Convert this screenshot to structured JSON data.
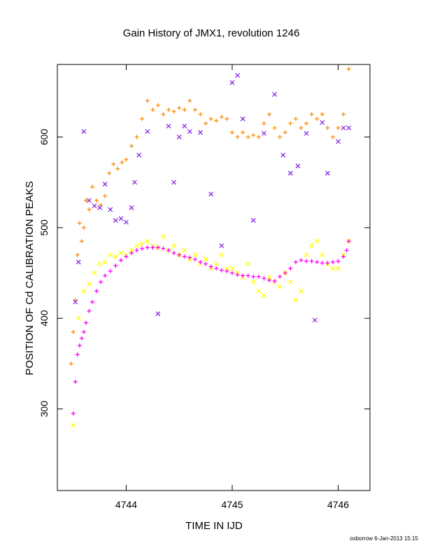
{
  "chart_data": {
    "type": "scatter",
    "title": "Gain History of JMX1, revolution 1246",
    "xlabel": "TIME IN IJD",
    "ylabel": "POSITION OF Cd CALIBRATION PEAKS",
    "xlim": [
      4743.35,
      4746.3
    ],
    "ylim": [
      210,
      680
    ],
    "x_ticks": [
      "4744",
      "4745",
      "4746"
    ],
    "y_ticks": [
      "300",
      "400",
      "500",
      "600"
    ],
    "x_tick_values": [
      4744,
      4745,
      4746
    ],
    "y_tick_values": [
      300,
      400,
      500,
      600
    ],
    "grid": false,
    "legend": "none",
    "series": [
      {
        "color": "#ff8c00",
        "marker": "plus",
        "x": [
          4743.48,
          4743.5,
          4743.52,
          4743.54,
          4743.56,
          4743.58,
          4743.6,
          4743.62,
          4743.65,
          4743.68,
          4743.72,
          4743.76,
          4743.8,
          4743.84,
          4743.88,
          4743.92,
          4743.96,
          4744.0,
          4744.05,
          4744.1,
          4744.15,
          4744.2,
          4744.25,
          4744.3,
          4744.35,
          4744.4,
          4744.45,
          4744.5,
          4744.55,
          4744.6,
          4744.65,
          4744.7,
          4744.75,
          4744.8,
          4744.85,
          4744.9,
          4744.95,
          4745.0,
          4745.05,
          4745.1,
          4745.15,
          4745.2,
          4745.25,
          4745.3,
          4745.35,
          4745.4,
          4745.45,
          4745.5,
          4745.55,
          4745.6,
          4745.65,
          4745.7,
          4745.75,
          4745.8,
          4745.85,
          4745.9,
          4745.95,
          4746.0,
          4746.05,
          4746.1
        ],
        "y": [
          350,
          385,
          420,
          470,
          505,
          485,
          500,
          530,
          520,
          545,
          530,
          525,
          535,
          560,
          570,
          565,
          572,
          575,
          590,
          600,
          620,
          640,
          630,
          635,
          625,
          630,
          628,
          632,
          630,
          640,
          630,
          625,
          615,
          620,
          618,
          622,
          620,
          605,
          600,
          605,
          600,
          602,
          600,
          615,
          625,
          610,
          600,
          605,
          615,
          620,
          610,
          615,
          625,
          620,
          625,
          610,
          600,
          610,
          625,
          675
        ]
      },
      {
        "color": "#8a2be2",
        "marker": "cross",
        "x": [
          4743.52,
          4743.55,
          4743.6,
          4743.65,
          4743.7,
          4743.75,
          4743.8,
          4743.85,
          4743.9,
          4743.95,
          4744.0,
          4744.05,
          4744.08,
          4744.12,
          4744.2,
          4744.3,
          4744.4,
          4744.45,
          4744.5,
          4744.55,
          4744.6,
          4744.7,
          4744.8,
          4744.9,
          4745.0,
          4745.05,
          4745.1,
          4745.2,
          4745.3,
          4745.4,
          4745.48,
          4745.55,
          4745.62,
          4745.7,
          4745.78,
          4745.85,
          4745.9,
          4746.0,
          4746.05,
          4746.1
        ],
        "y": [
          418,
          462,
          606,
          530,
          524,
          522,
          548,
          520,
          508,
          510,
          506,
          522,
          550,
          580,
          606,
          405,
          612,
          550,
          600,
          612,
          606,
          605,
          537,
          480,
          660,
          668,
          620,
          508,
          604,
          647,
          580,
          560,
          568,
          604,
          398,
          616,
          560,
          595,
          610,
          610
        ]
      },
      {
        "color": "#ffff00",
        "marker": "cross",
        "x": [
          4743.5,
          4743.55,
          4743.6,
          4743.65,
          4743.7,
          4743.75,
          4743.8,
          4743.85,
          4743.9,
          4743.95,
          4744.0,
          4744.05,
          4744.1,
          4744.15,
          4744.2,
          4744.25,
          4744.3,
          4744.35,
          4744.4,
          4744.45,
          4744.5,
          4744.55,
          4744.6,
          4744.65,
          4744.7,
          4744.75,
          4744.8,
          4744.85,
          4744.9,
          4744.95,
          4745.0,
          4745.05,
          4745.1,
          4745.15,
          4745.2,
          4745.25,
          4745.3,
          4745.35,
          4745.4,
          4745.45,
          4745.5,
          4745.55,
          4745.6,
          4745.65,
          4745.7,
          4745.75,
          4745.8,
          4745.85,
          4745.9,
          4745.95,
          4746.0,
          4746.05,
          4746.1
        ],
        "y": [
          282,
          400,
          430,
          438,
          450,
          460,
          462,
          470,
          468,
          472,
          470,
          475,
          480,
          482,
          485,
          480,
          478,
          490,
          475,
          480,
          470,
          475,
          465,
          470,
          460,
          465,
          455,
          460,
          470,
          455,
          455,
          450,
          445,
          460,
          440,
          430,
          425,
          445,
          440,
          435,
          450,
          440,
          420,
          430,
          470,
          480,
          485,
          470,
          460,
          455,
          455,
          470,
          485
        ]
      },
      {
        "color": "#ff00ff",
        "marker": "plus",
        "x": [
          4743.5,
          4743.52,
          4743.54,
          4743.56,
          4743.58,
          4743.6,
          4743.62,
          4743.65,
          4743.68,
          4743.72,
          4743.76,
          4743.8,
          4743.85,
          4743.9,
          4743.95,
          4744.0,
          4744.05,
          4744.1,
          4744.15,
          4744.2,
          4744.25,
          4744.3,
          4744.35,
          4744.4,
          4744.45,
          4744.5,
          4744.55,
          4744.6,
          4744.65,
          4744.7,
          4744.75,
          4744.8,
          4744.85,
          4744.9,
          4744.95,
          4745.0,
          4745.05,
          4745.1,
          4745.15,
          4745.2,
          4745.25,
          4745.3,
          4745.35,
          4745.4,
          4745.45,
          4745.5,
          4745.55,
          4745.6,
          4745.65,
          4745.7,
          4745.75,
          4745.8,
          4745.85,
          4745.9,
          4745.95,
          4746.0,
          4746.05,
          4746.08,
          4746.1
        ],
        "y": [
          295,
          330,
          360,
          370,
          378,
          385,
          395,
          408,
          418,
          430,
          440,
          447,
          452,
          458,
          464,
          468,
          472,
          475,
          477,
          478,
          478,
          478,
          477,
          475,
          472,
          470,
          468,
          467,
          465,
          462,
          460,
          457,
          455,
          453,
          452,
          450,
          448,
          447,
          447,
          446,
          446,
          444,
          442,
          441,
          446,
          450,
          455,
          462,
          464,
          463,
          463,
          462,
          461,
          461,
          462,
          463,
          468,
          475,
          485
        ]
      }
    ]
  },
  "footer": "oxborrow  6-Jan-2013 15:15"
}
